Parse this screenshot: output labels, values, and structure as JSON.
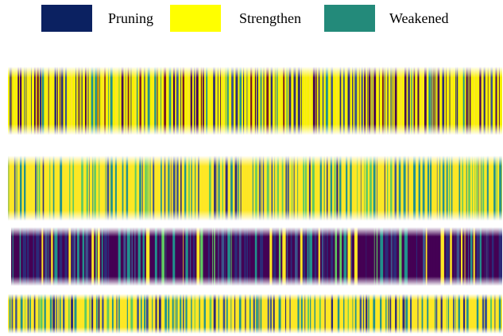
{
  "legend": {
    "items": [
      {
        "label": "Pruning",
        "color": "#0b2161"
      },
      {
        "label": "Strengthen",
        "color": "#ffff00"
      },
      {
        "label": "Weakened",
        "color": "#238a7a"
      }
    ]
  },
  "colors": {
    "purple": "#440154",
    "dark_blue": "#2c2a78",
    "blue": "#3b528b",
    "teal": "#21918c",
    "green": "#5ec962",
    "yellow": "#fde725",
    "bright_yellow": "#f7f200",
    "dark_red": "#7a1a22"
  }
}
